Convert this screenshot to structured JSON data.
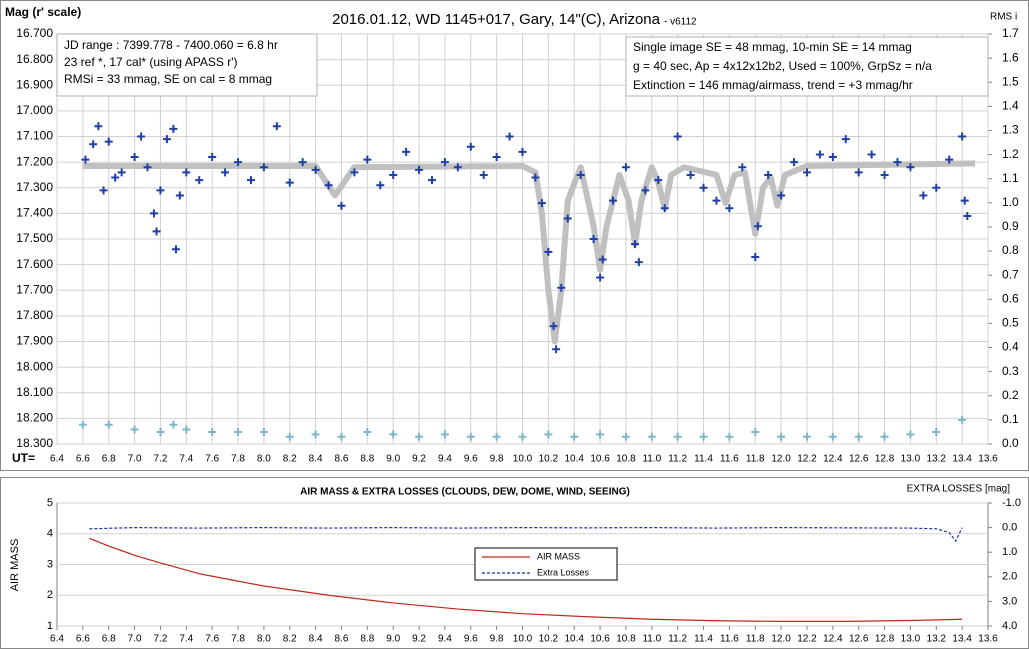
{
  "chart_data": [
    {
      "type": "scatter",
      "title": "2016.01.12, WD 1145+017, Gary, 14\"(C), Arizona",
      "version": "- v6112",
      "y_label": "Mag (r' scale)",
      "y2_label": "RMS i",
      "x_label": "UT=",
      "annotations": [
        [
          "JD range  : 7399.778 - 7400.060  = 6.8 hr",
          " 23 ref *, 17 cal* (using APASS r')",
          "RMSi = 33 mmag, SE on cal = 8 mmag"
        ],
        [
          "Single image SE = 48 mmag, 10-min SE = 14 mmag",
          "g = 40 sec, Ap = 4x12x12b2, Used = 100%, GrpSz = n/a",
          "Extinction = 146 mmag/airmass, trend = +3 mmag/hr"
        ]
      ],
      "xlim": [
        6.4,
        13.6
      ],
      "xticks": [
        6.4,
        6.6,
        6.8,
        {
          "value": 7,
          "label": "7.0"
        },
        7.2,
        7.4,
        7.6,
        7.8,
        {
          "value": 8,
          "label": "8.0"
        },
        8.2,
        8.4,
        8.6,
        8.8,
        {
          "value": 9,
          "label": "9.0"
        },
        9.2,
        9.4,
        9.6,
        9.8,
        {
          "value": 10,
          "label": "10.0"
        },
        10.2,
        10.4,
        10.6,
        10.8,
        {
          "value": 11,
          "label": "11.0"
        },
        11.2,
        11.4,
        11.6,
        11.8,
        {
          "value": 12,
          "label": "12.0"
        },
        12.2,
        12.4,
        12.6,
        12.8,
        {
          "value": 13,
          "label": "13.0"
        },
        13.2,
        13.4,
        13.6
      ],
      "ylim": [
        18.3,
        16.7
      ],
      "yticks": [
        {
          "value": 16.7,
          "label": "16.700"
        },
        {
          "value": 16.8,
          "label": "16.800"
        },
        {
          "value": 16.9,
          "label": "16.900"
        },
        {
          "value": 17,
          "label": "17.000"
        },
        {
          "value": 17.1,
          "label": "17.100"
        },
        {
          "value": 17.2,
          "label": "17.200"
        },
        {
          "value": 17.3,
          "label": "17.300"
        },
        {
          "value": 17.4,
          "label": "17.400"
        },
        {
          "value": 17.5,
          "label": "17.500"
        },
        {
          "value": 17.6,
          "label": "17.600"
        },
        {
          "value": 17.7,
          "label": "17.700"
        },
        {
          "value": 17.8,
          "label": "17.800"
        },
        {
          "value": 17.9,
          "label": "17.900"
        },
        {
          "value": 18,
          "label": "18.000"
        },
        {
          "value": 18.1,
          "label": "18.100"
        },
        {
          "value": 18.2,
          "label": "18.200"
        },
        {
          "value": 18.3,
          "label": "18.300"
        }
      ],
      "y2lim": [
        0,
        1.7
      ],
      "y2ticks": [
        {
          "value": 0,
          "label": "0.0"
        },
        0.1,
        0.2,
        0.3,
        0.4,
        0.5,
        0.6,
        0.7,
        0.8,
        0.9,
        {
          "value": 1,
          "label": "1.0"
        },
        1.1,
        1.2,
        1.3,
        1.4,
        1.5,
        1.6,
        1.7
      ],
      "grid": true,
      "series": [
        {
          "style": "line",
          "color": "#c0c0c0",
          "x": [
            6.6,
            8.4,
            8.55,
            8.7,
            10.0,
            10.1,
            10.15,
            10.2,
            10.25,
            10.3,
            10.35,
            10.45,
            10.55,
            10.6,
            10.65,
            10.75,
            10.82,
            10.87,
            10.92,
            11.0,
            11.05,
            11.1,
            11.15,
            11.25,
            11.5,
            11.57,
            11.64,
            11.72,
            11.8,
            11.86,
            11.92,
            11.97,
            12.03,
            12.2,
            13.5
          ],
          "values": [
            17.215,
            17.215,
            17.33,
            17.22,
            17.215,
            17.24,
            17.4,
            17.7,
            17.9,
            17.7,
            17.35,
            17.22,
            17.45,
            17.62,
            17.45,
            17.25,
            17.35,
            17.52,
            17.35,
            17.22,
            17.28,
            17.38,
            17.25,
            17.22,
            17.25,
            17.36,
            17.25,
            17.24,
            17.48,
            17.3,
            17.26,
            17.37,
            17.25,
            17.215,
            17.205
          ]
        },
        {
          "style": "plus",
          "color": "#1f3fa8",
          "x": [
            6.62,
            6.68,
            6.72,
            6.76,
            6.8,
            6.85,
            6.9,
            7.0,
            7.05,
            7.1,
            7.15,
            7.17,
            7.2,
            7.25,
            7.3,
            7.32,
            7.35,
            7.4,
            7.5,
            7.6,
            7.7,
            7.8,
            7.9,
            8.0,
            8.1,
            8.2,
            8.3,
            8.4,
            8.5,
            8.6,
            8.7,
            8.8,
            8.9,
            9.0,
            9.1,
            9.2,
            9.3,
            9.4,
            9.5,
            9.6,
            9.7,
            9.8,
            9.9,
            10.0,
            10.1,
            10.15,
            10.2,
            10.24,
            10.26,
            10.3,
            10.35,
            10.45,
            10.55,
            10.6,
            10.62,
            10.7,
            10.8,
            10.87,
            10.9,
            10.95,
            11.05,
            11.1,
            11.2,
            11.3,
            11.4,
            11.5,
            11.6,
            11.7,
            11.8,
            11.82,
            11.9,
            12.0,
            12.1,
            12.2,
            12.3,
            12.4,
            12.5,
            12.6,
            12.7,
            12.8,
            12.9,
            13.0,
            13.1,
            13.2,
            13.3,
            13.4,
            13.42,
            13.44
          ],
          "values": [
            17.19,
            17.13,
            17.06,
            17.31,
            17.12,
            17.26,
            17.24,
            17.18,
            17.1,
            17.22,
            17.4,
            17.47,
            17.31,
            17.11,
            17.07,
            17.54,
            17.33,
            17.24,
            17.27,
            17.18,
            17.24,
            17.2,
            17.27,
            17.22,
            17.06,
            17.28,
            17.2,
            17.23,
            17.29,
            17.37,
            17.24,
            17.19,
            17.29,
            17.25,
            17.16,
            17.23,
            17.27,
            17.2,
            17.22,
            17.14,
            17.25,
            17.18,
            17.1,
            17.16,
            17.26,
            17.36,
            17.55,
            17.84,
            17.93,
            17.69,
            17.42,
            17.25,
            17.5,
            17.65,
            17.58,
            17.35,
            17.22,
            17.52,
            17.59,
            17.31,
            17.27,
            17.38,
            17.1,
            17.25,
            17.3,
            17.35,
            17.38,
            17.22,
            17.57,
            17.45,
            17.25,
            17.33,
            17.2,
            17.24,
            17.17,
            17.18,
            17.11,
            17.24,
            17.17,
            17.25,
            17.2,
            17.22,
            17.33,
            17.3,
            17.19,
            17.1,
            17.35,
            17.41
          ]
        },
        {
          "style": "plus",
          "color": "#7fb7c8",
          "axis": "y2",
          "x": [
            6.6,
            6.8,
            7.0,
            7.2,
            7.3,
            7.4,
            7.6,
            7.8,
            8.0,
            8.2,
            8.4,
            8.6,
            8.8,
            9.0,
            9.2,
            9.4,
            9.6,
            9.8,
            10.0,
            10.2,
            10.4,
            10.6,
            10.8,
            11.0,
            11.2,
            11.4,
            11.6,
            11.8,
            12.0,
            12.2,
            12.4,
            12.6,
            12.8,
            13.0,
            13.2,
            13.4
          ],
          "values": [
            0.08,
            0.08,
            0.06,
            0.05,
            0.08,
            0.06,
            0.05,
            0.05,
            0.05,
            0.03,
            0.04,
            0.03,
            0.05,
            0.04,
            0.03,
            0.04,
            0.03,
            0.03,
            0.03,
            0.04,
            0.03,
            0.04,
            0.03,
            0.03,
            0.03,
            0.03,
            0.03,
            0.05,
            0.03,
            0.03,
            0.03,
            0.03,
            0.03,
            0.04,
            0.05,
            0.1
          ]
        }
      ]
    },
    {
      "type": "line",
      "title": "AIR MASS & EXTRA LOSSES (CLOUDS, DEW, DOME, WIND, SEEING)",
      "y_label": "AIR MASS",
      "y2_label": "EXTRA LOSSES [mag]",
      "xlim": [
        6.4,
        13.6
      ],
      "xticks": [
        6.4,
        6.6,
        6.8,
        {
          "value": 7,
          "label": "7.0"
        },
        7.2,
        7.4,
        7.6,
        7.8,
        {
          "value": 8,
          "label": "8.0"
        },
        8.2,
        8.4,
        8.6,
        8.8,
        {
          "value": 9,
          "label": "9.0"
        },
        9.2,
        9.4,
        9.6,
        9.8,
        {
          "value": 10,
          "label": "10.0"
        },
        10.2,
        10.4,
        10.6,
        10.8,
        {
          "value": 11,
          "label": "11.0"
        },
        11.2,
        11.4,
        11.6,
        11.8,
        {
          "value": 12,
          "label": "12.0"
        },
        12.2,
        12.4,
        12.6,
        12.8,
        {
          "value": 13,
          "label": "13.0"
        },
        13.2,
        13.4,
        13.6
      ],
      "ylim": [
        1,
        5
      ],
      "yticks": [
        1,
        2,
        3,
        4,
        5
      ],
      "y2lim": [
        4,
        -1
      ],
      "y2ticks": [
        {
          "value": -1,
          "label": "-1.0"
        },
        {
          "value": 0,
          "label": "0.0"
        },
        {
          "value": 1,
          "label": "1.0"
        },
        {
          "value": 2,
          "label": "2.0"
        },
        {
          "value": 3,
          "label": "3.0"
        },
        {
          "value": 4,
          "label": "4.0"
        }
      ],
      "grid": true,
      "series": [
        {
          "name": "AIR MASS",
          "style": "line",
          "color": "#c0271e",
          "x": [
            6.65,
            6.8,
            7.0,
            7.2,
            7.5,
            8.0,
            8.5,
            9.0,
            9.5,
            10.0,
            10.5,
            11.0,
            11.5,
            12.0,
            12.5,
            13.0,
            13.4
          ],
          "values": [
            3.85,
            3.6,
            3.3,
            3.05,
            2.7,
            2.3,
            2.0,
            1.75,
            1.55,
            1.4,
            1.3,
            1.22,
            1.17,
            1.15,
            1.15,
            1.18,
            1.22
          ]
        },
        {
          "name": "Extra Losses",
          "style": "dash",
          "color": "#1a2fa0",
          "axis": "y2",
          "x": [
            6.65,
            7.0,
            7.5,
            8.0,
            8.5,
            9.0,
            9.5,
            10.0,
            10.5,
            11.0,
            11.5,
            12.0,
            12.5,
            13.0,
            13.2,
            13.3,
            13.35,
            13.4
          ],
          "values": [
            0.05,
            0.0,
            0.02,
            0.0,
            0.02,
            0.0,
            0.02,
            0.0,
            0.01,
            0.0,
            0.02,
            0.0,
            0.01,
            0.02,
            0.05,
            0.2,
            0.55,
            0.0
          ]
        }
      ]
    }
  ]
}
